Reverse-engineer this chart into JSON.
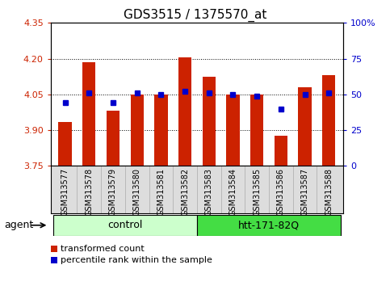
{
  "title": "GDS3515 / 1375570_at",
  "samples": [
    "GSM313577",
    "GSM313578",
    "GSM313579",
    "GSM313580",
    "GSM313581",
    "GSM313582",
    "GSM313583",
    "GSM313584",
    "GSM313585",
    "GSM313586",
    "GSM313587",
    "GSM313588"
  ],
  "transformed_count": [
    3.935,
    4.185,
    3.98,
    4.05,
    4.048,
    4.205,
    4.125,
    4.048,
    4.048,
    3.875,
    4.08,
    4.13
  ],
  "percentile_rank": [
    44,
    51,
    44,
    51,
    50,
    52,
    51,
    50,
    49,
    40,
    50,
    51
  ],
  "ylim_left": [
    3.75,
    4.35
  ],
  "ylim_right": [
    0,
    100
  ],
  "yticks_left": [
    3.75,
    3.9,
    4.05,
    4.2,
    4.35
  ],
  "yticks_right": [
    0,
    25,
    50,
    75,
    100
  ],
  "ytick_labels_right": [
    "0",
    "25",
    "50",
    "75",
    "100%"
  ],
  "bar_color": "#cc2200",
  "dot_color": "#0000cc",
  "bar_bottom": 3.75,
  "grid_lines": [
    3.9,
    4.05,
    4.2
  ],
  "control_color": "#ccffcc",
  "htt_color": "#44dd44",
  "control_label": "control",
  "htt_label": "htt-171-82Q",
  "agent_label": "agent",
  "legend_items": [
    {
      "label": "transformed count",
      "color": "#cc2200"
    },
    {
      "label": "percentile rank within the sample",
      "color": "#0000cc"
    }
  ],
  "bg_color": "#dddddd"
}
